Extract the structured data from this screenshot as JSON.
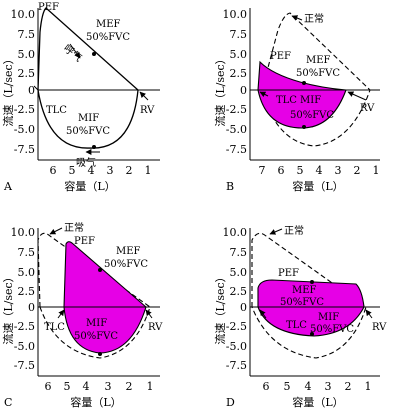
{
  "figure": {
    "y_axis_label": "流速（L/sec）",
    "x_axis_label": "容量（L）",
    "x_ticks": [
      "7",
      "6",
      "5",
      "4",
      "3",
      "2",
      "1"
    ],
    "y_ticks": [
      "10.0",
      "7.5",
      "5.0",
      "2.5",
      "0",
      "-2.5",
      "-5.0",
      "-7.5"
    ],
    "colors": {
      "fill": "#e600e6",
      "line": "#000000",
      "background": "#ffffff"
    }
  },
  "panels": [
    {
      "id": "A",
      "letter": "A",
      "x_ticks": [
        "6",
        "5",
        "4",
        "3",
        "2",
        "1"
      ],
      "labels": {
        "pef": "PEF",
        "mef": "MEF",
        "mef_sub": "50%FVC",
        "exhale": "呼气",
        "tlc": "TLC",
        "rv": "RV",
        "mif": "MIF",
        "mif_sub": "50%FVC",
        "inhale": "吸气"
      }
    },
    {
      "id": "B",
      "letter": "B",
      "x_ticks": [
        "7",
        "6",
        "5",
        "4",
        "3",
        "2",
        "1"
      ],
      "labels": {
        "normal": "正常",
        "pef": "PEF",
        "mef": "MEF",
        "mef_sub": "50%FVC",
        "tlc": "TLC",
        "rv": "RV",
        "mif": "MIF",
        "mif_sub": "50%FVC"
      }
    },
    {
      "id": "C",
      "letter": "C",
      "x_ticks": [
        "6",
        "5",
        "4",
        "3",
        "2",
        "1"
      ],
      "labels": {
        "normal": "正常",
        "pef": "PEF",
        "mef": "MEF",
        "mef_sub": "50%FVC",
        "tlc": "TLC",
        "rv": "RV",
        "mif": "MIF",
        "mif_sub": "50%FVC"
      }
    },
    {
      "id": "D",
      "letter": "D",
      "x_ticks": [
        "6",
        "5",
        "4",
        "3",
        "2",
        "1"
      ],
      "labels": {
        "normal": "正常",
        "pef": "PEF",
        "mef": "MEF",
        "mef_sub": "50%FVC",
        "tlc": "TLC",
        "rv": "RV",
        "mif": "MIF",
        "mif_sub": "50%FVC"
      }
    }
  ]
}
